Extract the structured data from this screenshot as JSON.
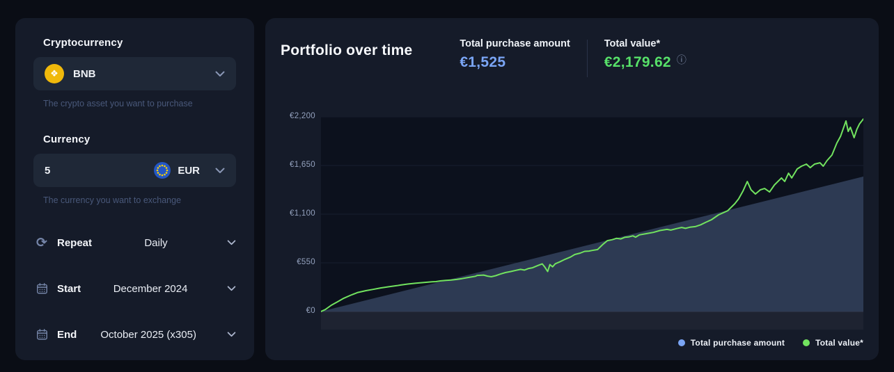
{
  "icons": {
    "bnb": "❖",
    "repeat": "⟳",
    "info": "ⓘ"
  },
  "colors": {
    "page_bg": "#0a0d15",
    "card_bg": "#151b29",
    "accent_blue": "#7aa5f5",
    "accent_green": "#57e069",
    "line_green": "#72e35f",
    "area_blue_fill": "#2d3a53",
    "bnb_yellow": "#f0b90b"
  },
  "sidebar": {
    "crypto": {
      "label": "Cryptocurrency",
      "selected": "BNB",
      "helper": "The crypto asset you want to purchase"
    },
    "currency": {
      "label": "Currency",
      "amount": "5",
      "code": "EUR",
      "helper": "The currency you want to exchange"
    },
    "repeat_row": {
      "label": "Repeat",
      "value": "Daily"
    },
    "start_row": {
      "label": "Start",
      "value": "December 2024"
    },
    "end_row": {
      "label": "End",
      "value": "October 2025 (x305)"
    }
  },
  "chart_header": {
    "title": "Portfolio over time",
    "purchase_label": "Total purchase amount",
    "purchase_value": "€1,525",
    "value_label": "Total value*",
    "value_value": "€2,179.62"
  },
  "chart_data": {
    "type": "line",
    "title": "Portfolio over time",
    "currency": "EUR",
    "ylim": [
      0,
      2200
    ],
    "yticks": [
      {
        "value": 0,
        "label": "€0"
      },
      {
        "value": 550,
        "label": "€550"
      },
      {
        "value": 1100,
        "label": "€1,100"
      },
      {
        "value": 1650,
        "label": "€1,650"
      },
      {
        "value": 2200,
        "label": "€2,200"
      }
    ],
    "x_range": [
      "December 2024",
      "October 2025"
    ],
    "purchases_count": 305,
    "grid": true,
    "legend_position": "bottom-right",
    "series": [
      {
        "name": "Total purchase amount",
        "type": "area",
        "color": "#7aa5f5",
        "fill": "#2d3a53",
        "final_value": 1525,
        "points": [
          [
            0,
            0
          ],
          [
            1,
            1525
          ]
        ]
      },
      {
        "name": "Total value*",
        "type": "line",
        "color": "#72e35f",
        "final_value": 2179.62,
        "points": [
          [
            0,
            0
          ],
          [
            0.008,
            22
          ],
          [
            0.019,
            71
          ],
          [
            0.03,
            108
          ],
          [
            0.042,
            150
          ],
          [
            0.055,
            185
          ],
          [
            0.068,
            215
          ],
          [
            0.083,
            236
          ],
          [
            0.096,
            250
          ],
          [
            0.11,
            266
          ],
          [
            0.125,
            280
          ],
          [
            0.14,
            292
          ],
          [
            0.147,
            299
          ],
          [
            0.16,
            310
          ],
          [
            0.175,
            320
          ],
          [
            0.19,
            328
          ],
          [
            0.205,
            336
          ],
          [
            0.212,
            338
          ],
          [
            0.22,
            346
          ],
          [
            0.23,
            352
          ],
          [
            0.24,
            356
          ],
          [
            0.25,
            362
          ],
          [
            0.26,
            372
          ],
          [
            0.272,
            385
          ],
          [
            0.285,
            398
          ],
          [
            0.288,
            408
          ],
          [
            0.3,
            412
          ],
          [
            0.307,
            400
          ],
          [
            0.314,
            393
          ],
          [
            0.322,
            405
          ],
          [
            0.33,
            422
          ],
          [
            0.34,
            440
          ],
          [
            0.35,
            452
          ],
          [
            0.36,
            466
          ],
          [
            0.368,
            476
          ],
          [
            0.375,
            468
          ],
          [
            0.383,
            486
          ],
          [
            0.39,
            494
          ],
          [
            0.4,
            520
          ],
          [
            0.408,
            538
          ],
          [
            0.413,
            500
          ],
          [
            0.418,
            452
          ],
          [
            0.422,
            530
          ],
          [
            0.427,
            505
          ],
          [
            0.432,
            540
          ],
          [
            0.44,
            560
          ],
          [
            0.45,
            590
          ],
          [
            0.46,
            615
          ],
          [
            0.468,
            644
          ],
          [
            0.478,
            660
          ],
          [
            0.486,
            680
          ],
          [
            0.494,
            683
          ],
          [
            0.5,
            690
          ],
          [
            0.51,
            700
          ],
          [
            0.52,
            760
          ],
          [
            0.528,
            801
          ],
          [
            0.537,
            812
          ],
          [
            0.545,
            827
          ],
          [
            0.553,
            820
          ],
          [
            0.56,
            838
          ],
          [
            0.567,
            842
          ],
          [
            0.575,
            855
          ],
          [
            0.58,
            840
          ],
          [
            0.587,
            866
          ],
          [
            0.6,
            880
          ],
          [
            0.613,
            894
          ],
          [
            0.625,
            915
          ],
          [
            0.638,
            928
          ],
          [
            0.645,
            920
          ],
          [
            0.656,
            937
          ],
          [
            0.665,
            950
          ],
          [
            0.672,
            940
          ],
          [
            0.68,
            952
          ],
          [
            0.69,
            959
          ],
          [
            0.7,
            980
          ],
          [
            0.71,
            1010
          ],
          [
            0.72,
            1037
          ],
          [
            0.733,
            1092
          ],
          [
            0.743,
            1120
          ],
          [
            0.75,
            1139
          ],
          [
            0.763,
            1218
          ],
          [
            0.77,
            1273
          ],
          [
            0.778,
            1360
          ],
          [
            0.786,
            1469
          ],
          [
            0.793,
            1375
          ],
          [
            0.801,
            1328
          ],
          [
            0.81,
            1375
          ],
          [
            0.818,
            1390
          ],
          [
            0.827,
            1351
          ],
          [
            0.836,
            1430
          ],
          [
            0.849,
            1509
          ],
          [
            0.855,
            1469
          ],
          [
            0.862,
            1563
          ],
          [
            0.868,
            1509
          ],
          [
            0.878,
            1611
          ],
          [
            0.886,
            1642
          ],
          [
            0.895,
            1666
          ],
          [
            0.902,
            1626
          ],
          [
            0.91,
            1666
          ],
          [
            0.92,
            1681
          ],
          [
            0.926,
            1642
          ],
          [
            0.933,
            1705
          ],
          [
            0.942,
            1768
          ],
          [
            0.951,
            1902
          ],
          [
            0.958,
            1980
          ],
          [
            0.968,
            2153
          ],
          [
            0.972,
            2035
          ],
          [
            0.976,
            2082
          ],
          [
            0.983,
            1964
          ],
          [
            0.988,
            2058
          ],
          [
            0.993,
            2121
          ],
          [
            1,
            2176
          ]
        ]
      }
    ]
  },
  "legend": {
    "purchase": "Total purchase amount",
    "value": "Total value*"
  }
}
